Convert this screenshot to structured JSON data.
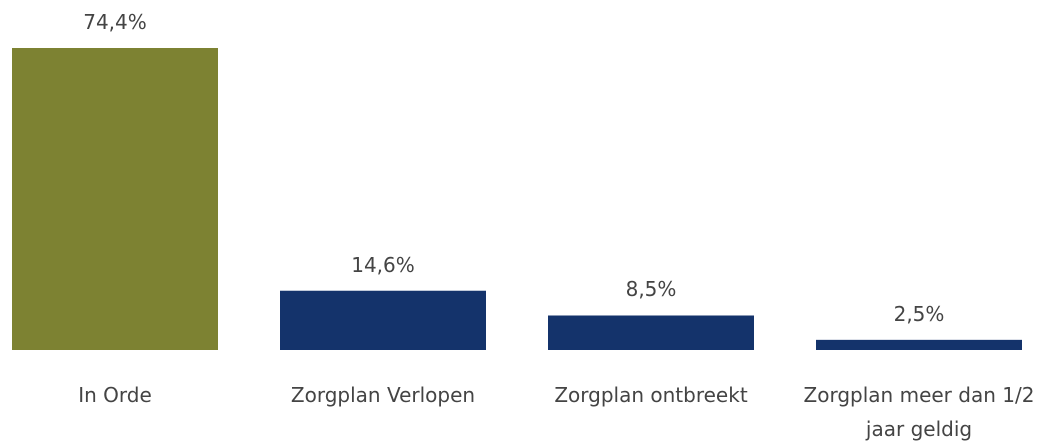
{
  "chart_data": {
    "type": "bar",
    "categories": [
      "In Orde",
      "Zorgplan Verlopen",
      "Zorgplan ontbreekt",
      "Zorgplan meer dan 1/2 jaar geldig"
    ],
    "values": [
      74.4,
      14.6,
      8.5,
      2.5
    ],
    "value_labels": [
      "74,4%",
      "14,6%",
      "8,5%",
      "2,5%"
    ],
    "colors": [
      "#7d8232",
      "#14336b",
      "#14336b",
      "#14336b"
    ]
  }
}
